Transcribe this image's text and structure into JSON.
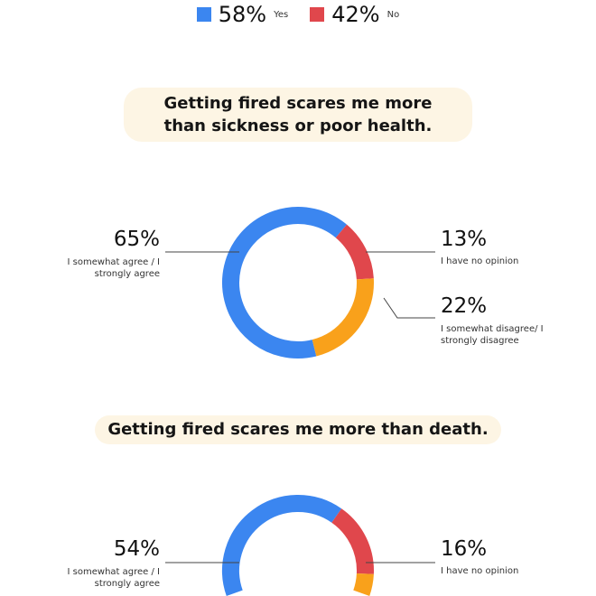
{
  "legend": [
    {
      "value": "58%",
      "label": "Yes",
      "color": "#3b86f0"
    },
    {
      "value": "42%",
      "label": "No",
      "color": "#e0474c"
    }
  ],
  "chart_data": [
    {
      "type": "pie",
      "title": "Getting fired scares me more than sickness or poor health.",
      "slices": [
        {
          "value": 65,
          "text": "65%",
          "label": "I somewhat agree / I strongly agree",
          "color": "#3b86f0"
        },
        {
          "value": 13,
          "text": "13%",
          "label": "I have no opinion",
          "color": "#e0474c"
        },
        {
          "value": 22,
          "text": "22%",
          "label": "I somewhat disagree/ I strongly disagree",
          "color": "#f9a11b"
        }
      ]
    },
    {
      "type": "pie",
      "title": "Getting fired scares me more than death.",
      "slices": [
        {
          "value": 54,
          "text": "54%",
          "label": "I somewhat agree / I strongly agree",
          "color": "#3b86f0"
        },
        {
          "value": 16,
          "text": "16%",
          "label": "I have no opinion",
          "color": "#e0474c"
        },
        {
          "value": 30,
          "color": "#f9a11b"
        }
      ]
    }
  ]
}
